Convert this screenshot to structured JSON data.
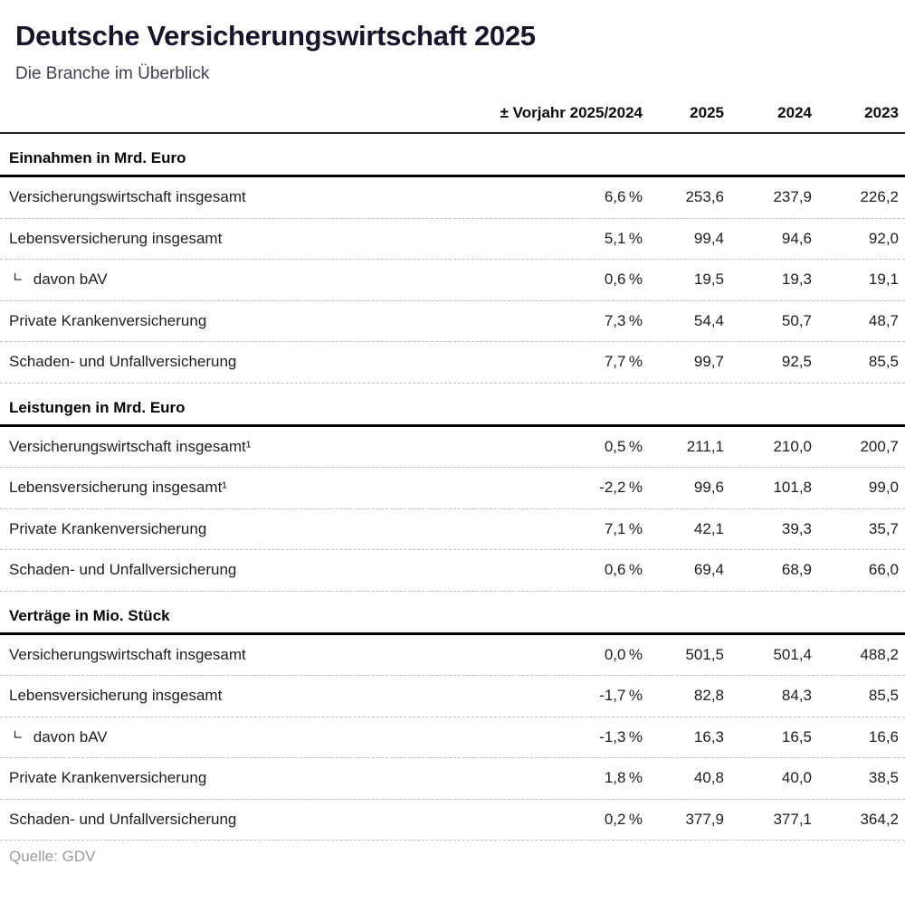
{
  "chart_data": {
    "type": "table",
    "title": "Deutsche Versicherungswirtschaft 2025",
    "subtitle": "Die Branche im Überblick",
    "columns": [
      "± Vorjahr 2025/2024",
      "2025",
      "2024",
      "2023"
    ],
    "sections": [
      {
        "title": "Einnahmen in Mrd. Euro",
        "rows": [
          {
            "label": "Versicherungswirtschaft insgesamt",
            "indent": false,
            "values": [
              "6,6 %",
              "253,6",
              "237,9",
              "226,2"
            ]
          },
          {
            "label": "Lebensversicherung insgesamt",
            "indent": false,
            "values": [
              "5,1 %",
              "99,4",
              "94,6",
              "92,0"
            ]
          },
          {
            "label": "davon bAV",
            "indent": true,
            "values": [
              "0,6 %",
              "19,5",
              "19,3",
              "19,1"
            ]
          },
          {
            "label": "Private Krankenversicherung",
            "indent": false,
            "values": [
              "7,3 %",
              "54,4",
              "50,7",
              "48,7"
            ]
          },
          {
            "label": "Schaden- und Unfallversicherung",
            "indent": false,
            "values": [
              "7,7 %",
              "99,7",
              "92,5",
              "85,5"
            ]
          }
        ]
      },
      {
        "title": "Leistungen in Mrd. Euro",
        "rows": [
          {
            "label": "Versicherungswirtschaft insgesamt¹",
            "indent": false,
            "values": [
              "0,5 %",
              "211,1",
              "210,0",
              "200,7"
            ]
          },
          {
            "label": "Lebensversicherung insgesamt¹",
            "indent": false,
            "values": [
              "-2,2 %",
              "99,6",
              "101,8",
              "99,0"
            ]
          },
          {
            "label": "Private Krankenversicherung",
            "indent": false,
            "values": [
              "7,1 %",
              "42,1",
              "39,3",
              "35,7"
            ]
          },
          {
            "label": "Schaden- und Unfallversicherung",
            "indent": false,
            "values": [
              "0,6 %",
              "69,4",
              "68,9",
              "66,0"
            ]
          }
        ]
      },
      {
        "title": "Verträge in Mio. Stück",
        "rows": [
          {
            "label": "Versicherungswirtschaft insgesamt",
            "indent": false,
            "values": [
              "0,0 %",
              "501,5",
              "501,4",
              "488,2"
            ]
          },
          {
            "label": "Lebensversicherung insgesamt",
            "indent": false,
            "values": [
              "-1,7 %",
              "82,8",
              "84,3",
              "85,5"
            ]
          },
          {
            "label": "davon bAV",
            "indent": true,
            "values": [
              "-1,3 %",
              "16,3",
              "16,5",
              "16,6"
            ]
          },
          {
            "label": "Private Krankenversicherung",
            "indent": false,
            "values": [
              "1,8 %",
              "40,8",
              "40,0",
              "38,5"
            ]
          },
          {
            "label": "Schaden- und Unfallversicherung",
            "indent": false,
            "values": [
              "0,2 %",
              "377,9",
              "377,1",
              "364,2"
            ]
          }
        ]
      }
    ],
    "source": "Quelle: GDV",
    "layout": {
      "legend": "none",
      "grid": "dashed-row-separators"
    }
  },
  "icons": {
    "indent_marker": "∟"
  },
  "colors": {
    "title": "#15152d",
    "subtitle": "#404055",
    "text": "#1e1e1e",
    "muted": "#9b9b9b",
    "section_rule": "#000000",
    "header_rule": "#222226",
    "row_separator": "#bdbdbd",
    "background": "#ffffff"
  }
}
